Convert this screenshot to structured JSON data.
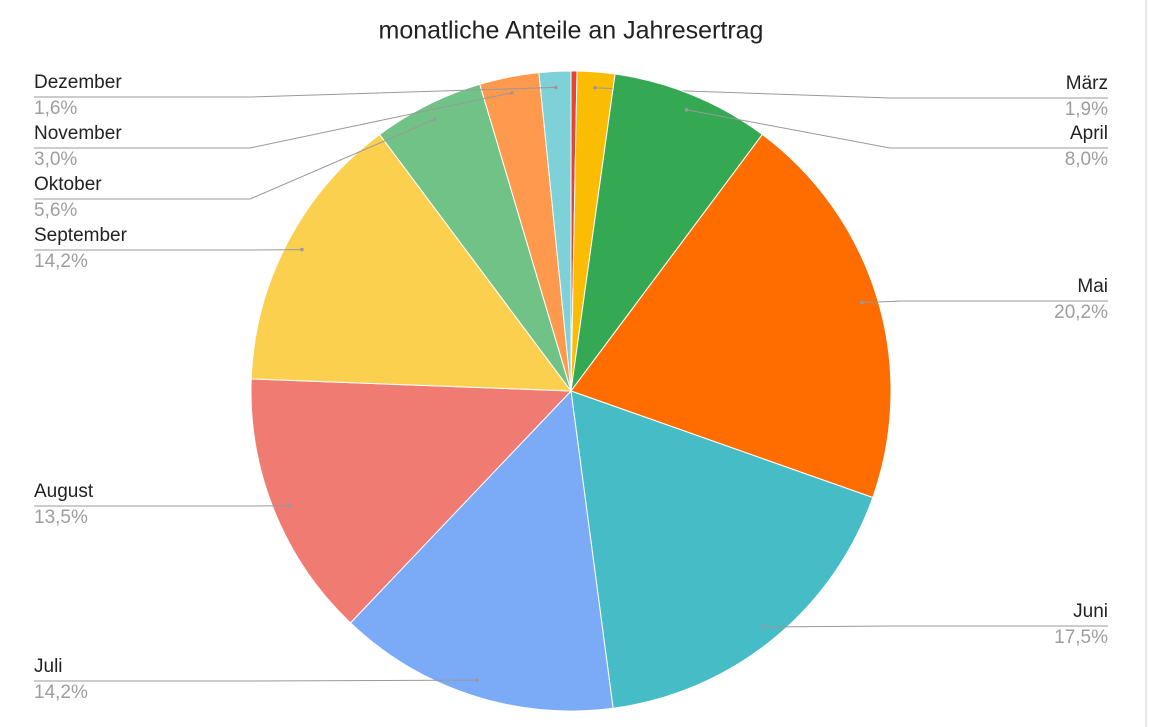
{
  "chart_data": {
    "type": "pie",
    "title": "monatliche Anteile an Jahresertrag",
    "categories": [
      null,
      "März",
      "April",
      "Mai",
      "Juni",
      "Juli",
      "August",
      "September",
      "Oktober",
      "November",
      "Dezember"
    ],
    "values": [
      0.3,
      1.9,
      8.0,
      20.2,
      17.5,
      14.2,
      13.5,
      14.2,
      5.6,
      3.0,
      1.6
    ],
    "value_labels": [
      null,
      "1,9%",
      "8,0%",
      "20,2%",
      "17,5%",
      "14,2%",
      "13,5%",
      "14,2%",
      "5,6%",
      "3,0%",
      "1,6%"
    ],
    "colors": [
      "#ea4335",
      "#fbbc04",
      "#34a853",
      "#ff6d01",
      "#46bdc6",
      "#7baaf7",
      "#f07b72",
      "#fcd04f",
      "#71c287",
      "#ff994d",
      "#7ed1d7"
    ]
  }
}
